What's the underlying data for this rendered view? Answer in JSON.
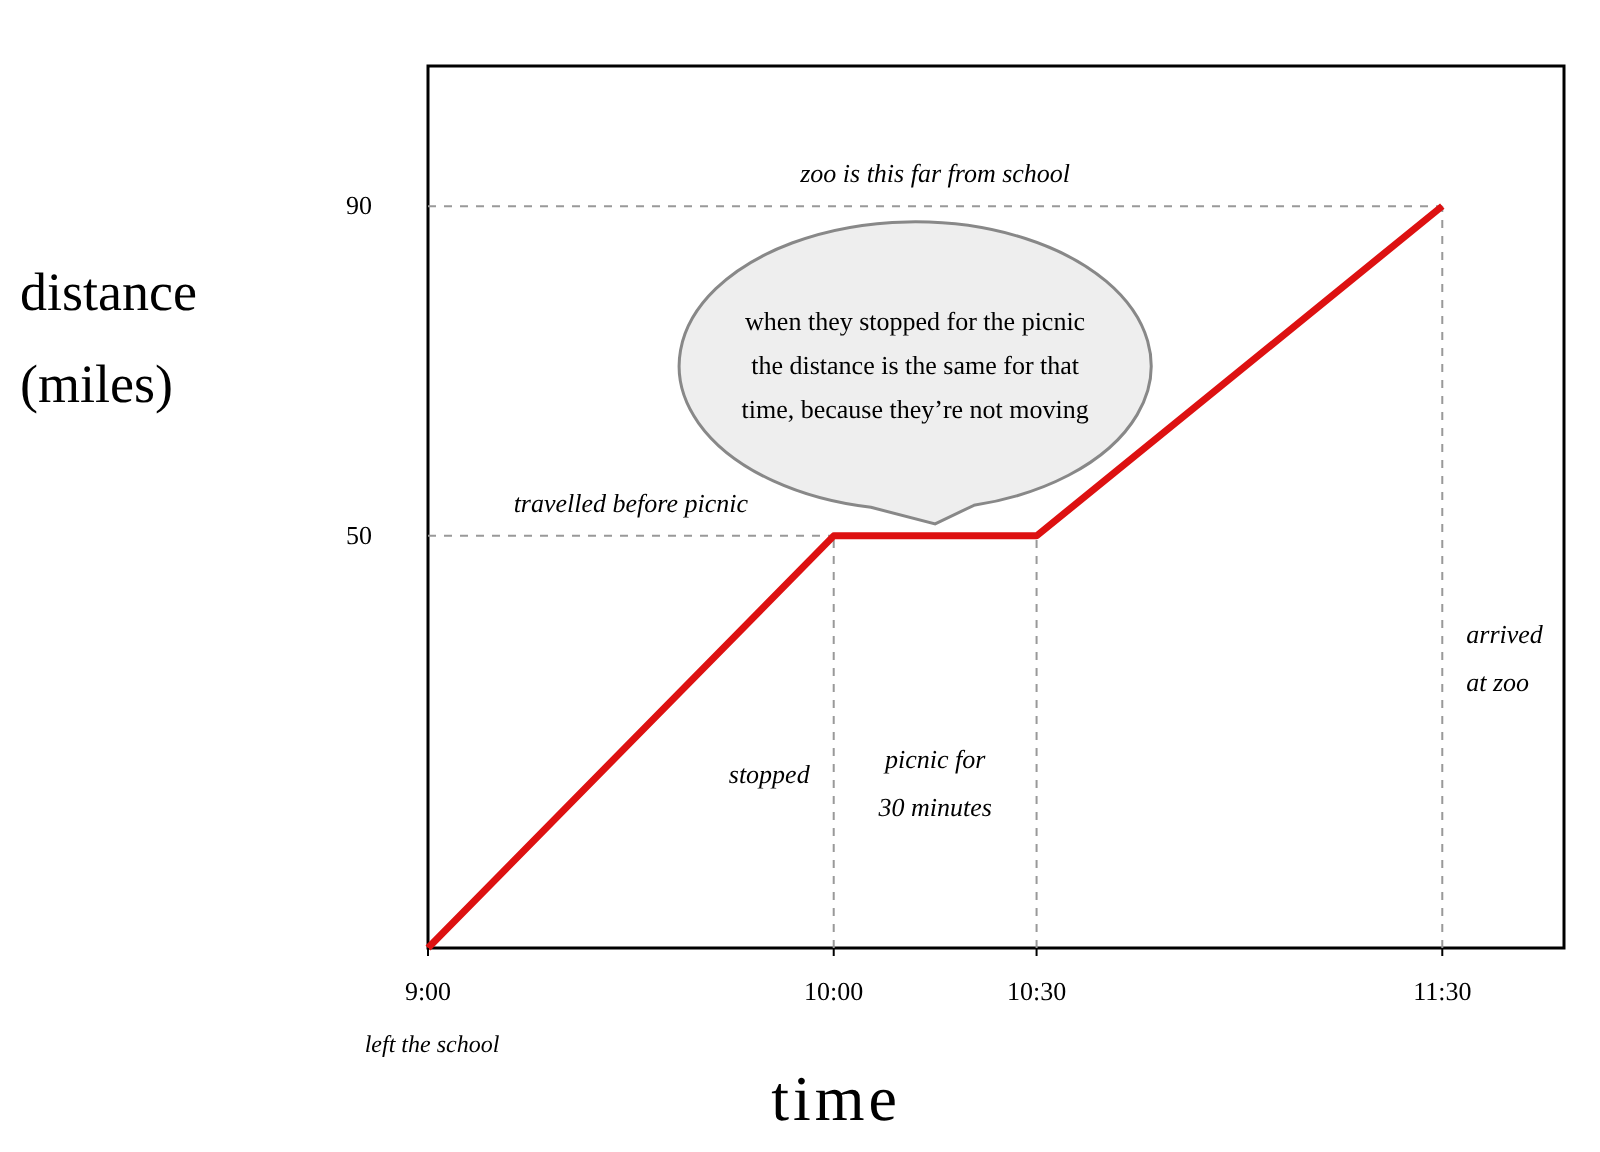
{
  "chart_data": {
    "type": "line",
    "xlabel": "time",
    "ylabel": "distance\n(miles)",
    "x": [
      9,
      10,
      10.5,
      11.5
    ],
    "series": [
      {
        "color": "#dd1111",
        "values": [
          0,
          50,
          50,
          90
        ]
      }
    ],
    "xlim": [
      9,
      11.8
    ],
    "ylim": [
      0,
      107
    ],
    "xticks": [
      {
        "value": 9,
        "label": "9:00"
      },
      {
        "value": 10,
        "label": "10:00"
      },
      {
        "value": 10.5,
        "label": "10:30"
      },
      {
        "value": 11.5,
        "label": "11:30"
      }
    ],
    "yticks": [
      50,
      90
    ],
    "grid": false,
    "line_style": "solid",
    "ref_lines": [
      {
        "axis": "y",
        "value": 90,
        "label": "zoo is this far from school",
        "color": "#999999",
        "line_style": "dashed"
      },
      {
        "axis": "y",
        "value": 50,
        "label": "travelled before picnic",
        "color": "#999999",
        "line_style": "dashed"
      },
      {
        "axis": "x",
        "value": 10,
        "color": "#999999",
        "line_style": "dashed"
      },
      {
        "axis": "x",
        "value": 10.5,
        "color": "#999999",
        "line_style": "dashed"
      },
      {
        "axis": "x",
        "value": 11.5,
        "color": "#999999",
        "line_style": "dashed"
      }
    ],
    "annotations": [
      "left the school",
      {
        "text": "stopped",
        "x": 10,
        "y": 20
      },
      "picnic for\n30 minutes",
      {
        "text": "arrived\nat zoo",
        "x": 11.5,
        "y": 37
      },
      "when they stopped for the picnic\nthe distance is the same for that\ntime, because they’re not moving"
    ]
  }
}
